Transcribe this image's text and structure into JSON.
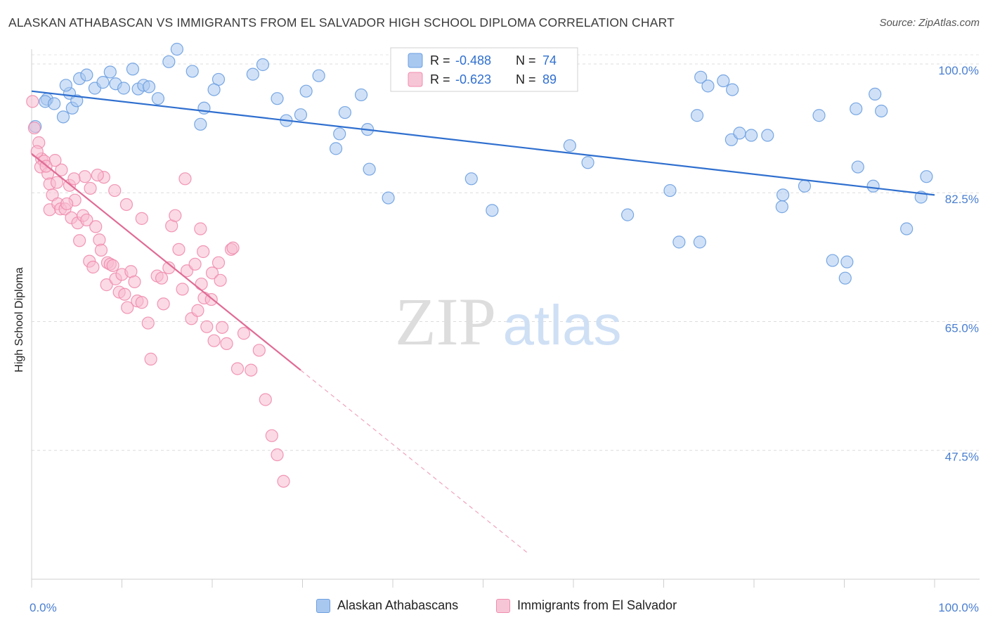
{
  "header": {
    "title": "ALASKAN ATHABASCAN VS IMMIGRANTS FROM EL SALVADOR HIGH SCHOOL DIPLOMA CORRELATION CHART",
    "source": "Source: ZipAtlas.com"
  },
  "watermark": {
    "zip": "ZIP",
    "atlas": "atlas"
  },
  "legend_top": {
    "r_label": "R =",
    "n_label": "N =",
    "entries": [
      {
        "r": "-0.488",
        "n": "74",
        "color": "#6b9fe0"
      },
      {
        "r": "-0.623",
        "n": "89",
        "color": "#f08cad"
      }
    ]
  },
  "chart_data": {
    "type": "scatter",
    "title": "ALASKAN ATHABASCAN VS IMMIGRANTS FROM EL SALVADOR HIGH SCHOOL DIPLOMA CORRELATION CHART",
    "xlabel": "",
    "ylabel": "High School Diploma",
    "xlim": [
      0,
      100
    ],
    "ylim": [
      30,
      102
    ],
    "x_tick_labels": [
      "0.0%",
      "100.0%"
    ],
    "y_ticks": [
      {
        "value": 100.0,
        "label": "100.0%"
      },
      {
        "value": 82.5,
        "label": "82.5%"
      },
      {
        "value": 65.0,
        "label": "65.0%"
      },
      {
        "value": 47.5,
        "label": "47.5%"
      }
    ],
    "grid": true,
    "legend_position": "top-center",
    "series": [
      {
        "name": "Alaskan Athabascans",
        "color": "#6b9fe0",
        "fill": "#a9c8f0",
        "trend": {
          "x0": 0,
          "y0": 96.3,
          "x1": 100,
          "y1": 82.2,
          "dashed_to": null
        },
        "points": [
          [
            0.4,
            91.5
          ],
          [
            1.7,
            95.2
          ],
          [
            1.5,
            94.9
          ],
          [
            2.5,
            94.6
          ],
          [
            3.5,
            92.8
          ],
          [
            4.2,
            96.0
          ],
          [
            4.5,
            94.0
          ],
          [
            3.8,
            97.1
          ],
          [
            5.0,
            95.0
          ],
          [
            5.3,
            98.0
          ],
          [
            6.1,
            98.5
          ],
          [
            7.0,
            96.7
          ],
          [
            7.9,
            97.5
          ],
          [
            8.7,
            98.9
          ],
          [
            9.3,
            97.3
          ],
          [
            10.2,
            96.7
          ],
          [
            11.2,
            99.3
          ],
          [
            11.8,
            96.6
          ],
          [
            12.4,
            97.1
          ],
          [
            13.0,
            96.9
          ],
          [
            14.0,
            95.3
          ],
          [
            15.2,
            100.3
          ],
          [
            16.1,
            102.0
          ],
          [
            17.8,
            99.0
          ],
          [
            18.7,
            91.8
          ],
          [
            19.1,
            94.0
          ],
          [
            20.7,
            97.9
          ],
          [
            20.2,
            96.5
          ],
          [
            24.5,
            98.6
          ],
          [
            25.6,
            99.9
          ],
          [
            27.2,
            95.3
          ],
          [
            28.2,
            92.3
          ],
          [
            29.8,
            93.1
          ],
          [
            30.4,
            96.3
          ],
          [
            31.8,
            98.4
          ],
          [
            34.7,
            93.4
          ],
          [
            34.1,
            90.5
          ],
          [
            36.5,
            95.8
          ],
          [
            37.4,
            85.7
          ],
          [
            33.7,
            88.5
          ],
          [
            39.5,
            81.8
          ],
          [
            37.2,
            91.1
          ],
          [
            48.7,
            84.4
          ],
          [
            51.0,
            80.1
          ],
          [
            59.6,
            88.9
          ],
          [
            61.6,
            86.6
          ],
          [
            66.0,
            79.5
          ],
          [
            70.7,
            82.8
          ],
          [
            71.7,
            75.8
          ],
          [
            74.0,
            75.8
          ],
          [
            73.7,
            93.0
          ],
          [
            74.1,
            98.2
          ],
          [
            74.9,
            97.0
          ],
          [
            76.6,
            97.7
          ],
          [
            77.6,
            96.5
          ],
          [
            79.7,
            90.3
          ],
          [
            77.5,
            89.7
          ],
          [
            78.4,
            90.6
          ],
          [
            81.5,
            90.3
          ],
          [
            83.2,
            82.2
          ],
          [
            83.1,
            80.6
          ],
          [
            85.6,
            83.4
          ],
          [
            87.2,
            93.0
          ],
          [
            88.7,
            73.3
          ],
          [
            90.1,
            70.9
          ],
          [
            90.3,
            73.1
          ],
          [
            91.5,
            86.0
          ],
          [
            91.3,
            93.9
          ],
          [
            93.4,
            95.9
          ],
          [
            93.2,
            83.4
          ],
          [
            94.1,
            93.6
          ],
          [
            96.9,
            77.6
          ],
          [
            98.5,
            81.9
          ],
          [
            99.1,
            84.7
          ]
        ]
      },
      {
        "name": "Immigrants from El Salvador",
        "color": "#f08cad",
        "fill": "#f7bccf",
        "trend": {
          "x0": 0,
          "y0": 87.8,
          "x1": 29.8,
          "y1": 58.4,
          "dashed_to": {
            "x": 55,
            "y": 33.5
          }
        },
        "points": [
          [
            0.1,
            94.9
          ],
          [
            0.3,
            91.3
          ],
          [
            0.8,
            89.3
          ],
          [
            1.1,
            87.1
          ],
          [
            1.4,
            86.8
          ],
          [
            1.0,
            86.0
          ],
          [
            1.8,
            85.1
          ],
          [
            2.0,
            83.7
          ],
          [
            2.3,
            82.2
          ],
          [
            2.0,
            80.2
          ],
          [
            2.9,
            81.0
          ],
          [
            3.2,
            80.3
          ],
          [
            3.3,
            85.6
          ],
          [
            2.8,
            83.9
          ],
          [
            3.7,
            80.3
          ],
          [
            4.4,
            79.1
          ],
          [
            4.8,
            81.5
          ],
          [
            4.2,
            83.5
          ],
          [
            5.1,
            78.4
          ],
          [
            5.3,
            76.0
          ],
          [
            5.7,
            79.4
          ],
          [
            6.1,
            78.8
          ],
          [
            6.4,
            73.2
          ],
          [
            6.8,
            72.4
          ],
          [
            7.1,
            77.9
          ],
          [
            7.5,
            76.1
          ],
          [
            7.7,
            74.7
          ],
          [
            8.3,
            70.0
          ],
          [
            8.4,
            73.0
          ],
          [
            8.7,
            72.8
          ],
          [
            9.0,
            72.6
          ],
          [
            9.3,
            70.8
          ],
          [
            9.7,
            69.0
          ],
          [
            10.0,
            71.4
          ],
          [
            10.3,
            68.7
          ],
          [
            10.6,
            66.9
          ],
          [
            11.0,
            71.8
          ],
          [
            11.4,
            70.4
          ],
          [
            11.7,
            67.8
          ],
          [
            12.2,
            67.6
          ],
          [
            12.9,
            64.8
          ],
          [
            13.2,
            59.9
          ],
          [
            13.9,
            71.2
          ],
          [
            14.4,
            70.9
          ],
          [
            14.6,
            67.4
          ],
          [
            15.2,
            72.3
          ],
          [
            15.5,
            78.0
          ],
          [
            15.9,
            79.4
          ],
          [
            16.3,
            74.8
          ],
          [
            16.7,
            69.4
          ],
          [
            17.2,
            71.9
          ],
          [
            17.7,
            65.4
          ],
          [
            18.1,
            72.8
          ],
          [
            18.4,
            66.5
          ],
          [
            18.8,
            70.1
          ],
          [
            19.1,
            68.2
          ],
          [
            19.4,
            64.3
          ],
          [
            19.9,
            68.0
          ],
          [
            20.2,
            62.4
          ],
          [
            20.7,
            73.0
          ],
          [
            21.1,
            64.2
          ],
          [
            21.6,
            62.0
          ],
          [
            22.1,
            74.8
          ],
          [
            22.8,
            58.6
          ],
          [
            23.5,
            63.4
          ],
          [
            24.3,
            58.4
          ],
          [
            25.2,
            61.1
          ],
          [
            25.9,
            54.4
          ],
          [
            26.6,
            49.5
          ],
          [
            27.2,
            46.9
          ],
          [
            27.9,
            43.3
          ],
          [
            12.2,
            79.0
          ],
          [
            10.5,
            80.9
          ],
          [
            9.2,
            82.8
          ],
          [
            8.0,
            84.6
          ],
          [
            7.3,
            84.9
          ],
          [
            6.5,
            83.1
          ],
          [
            5.9,
            84.7
          ],
          [
            4.7,
            84.4
          ],
          [
            3.9,
            81.0
          ],
          [
            2.6,
            86.9
          ],
          [
            1.6,
            86.1
          ],
          [
            0.6,
            88.1
          ],
          [
            17.0,
            84.4
          ],
          [
            18.7,
            77.6
          ],
          [
            19.0,
            74.5
          ],
          [
            20.0,
            71.6
          ],
          [
            20.9,
            70.6
          ],
          [
            22.3,
            75.0
          ]
        ]
      }
    ]
  },
  "bottom_legend": {
    "items": [
      {
        "label": "Alaskan Athabascans",
        "color": "#a9c8f0",
        "border": "#6b9fe0"
      },
      {
        "label": "Immigrants from El Salvador",
        "color": "#f7c6d6",
        "border": "#f08cad"
      }
    ]
  }
}
